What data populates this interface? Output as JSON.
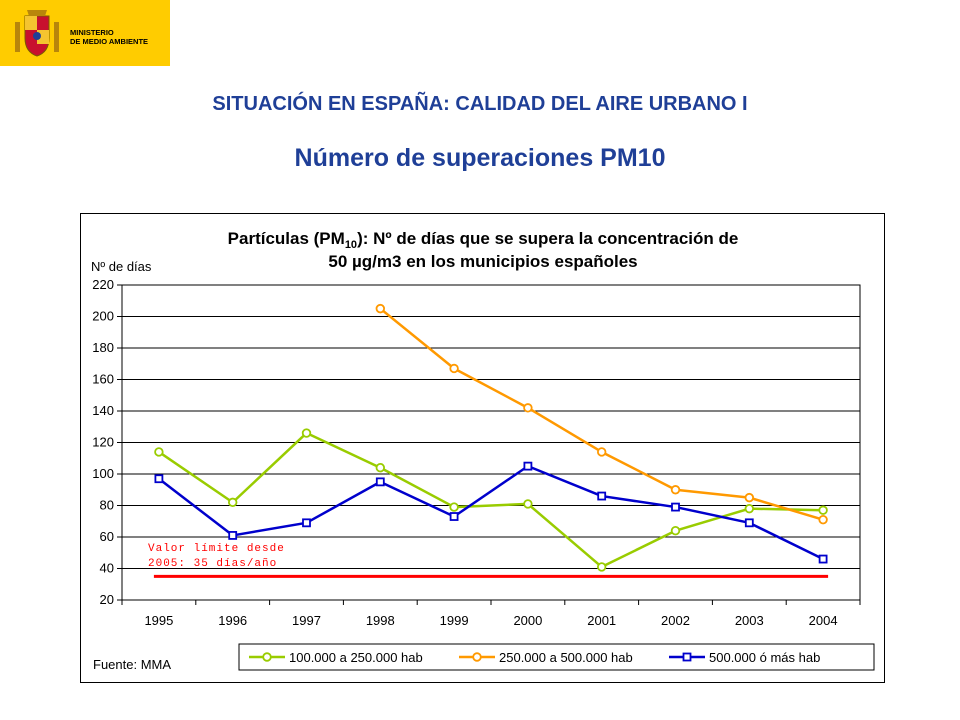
{
  "header": {
    "logo_line1": "MINISTERIO",
    "logo_line2": "DE MEDIO AMBIENTE",
    "brand_color": "#FFCC00"
  },
  "slide": {
    "title": "SITUACIÓN EN ESPAÑA: CALIDAD DEL AIRE URBANO I",
    "subtitle": "Número de superaciones PM10",
    "title_color": "#1F3F97"
  },
  "chart_data": {
    "type": "line",
    "title_part1": "Partículas (PM",
    "title_sub": "10",
    "title_part2": "): Nº de días que se supera la concentración de",
    "title_line2": "50 µg/m3 en los municipios españoles",
    "ylabel": "Nº de días",
    "source": "Fuente: MMA",
    "x": [
      "1995",
      "1996",
      "1997",
      "1998",
      "1999",
      "2000",
      "2001",
      "2002",
      "2003",
      "2004"
    ],
    "ylim": [
      20,
      220
    ],
    "yticks": [
      20,
      40,
      60,
      80,
      100,
      120,
      140,
      160,
      180,
      200,
      220
    ],
    "grid": true,
    "legend_position": "bottom",
    "series": [
      {
        "name": "100.000 a 250.000 hab",
        "color": "#99CC00",
        "values": [
          114,
          82,
          126,
          104,
          79,
          81,
          41,
          64,
          78,
          77
        ]
      },
      {
        "name": "250.000 a 500.000 hab",
        "color": "#FF9900",
        "values": [
          null,
          null,
          null,
          205,
          167,
          142,
          114,
          90,
          85,
          71
        ]
      },
      {
        "name": "500.000 ó más hab",
        "color": "#0000CC",
        "values": [
          97,
          61,
          69,
          95,
          73,
          105,
          86,
          79,
          69,
          46
        ]
      }
    ],
    "limit": {
      "value": 35,
      "color": "#FF0000",
      "label_line1": "Valor límite desde",
      "label_line2": "2005: 35 días/año"
    }
  }
}
